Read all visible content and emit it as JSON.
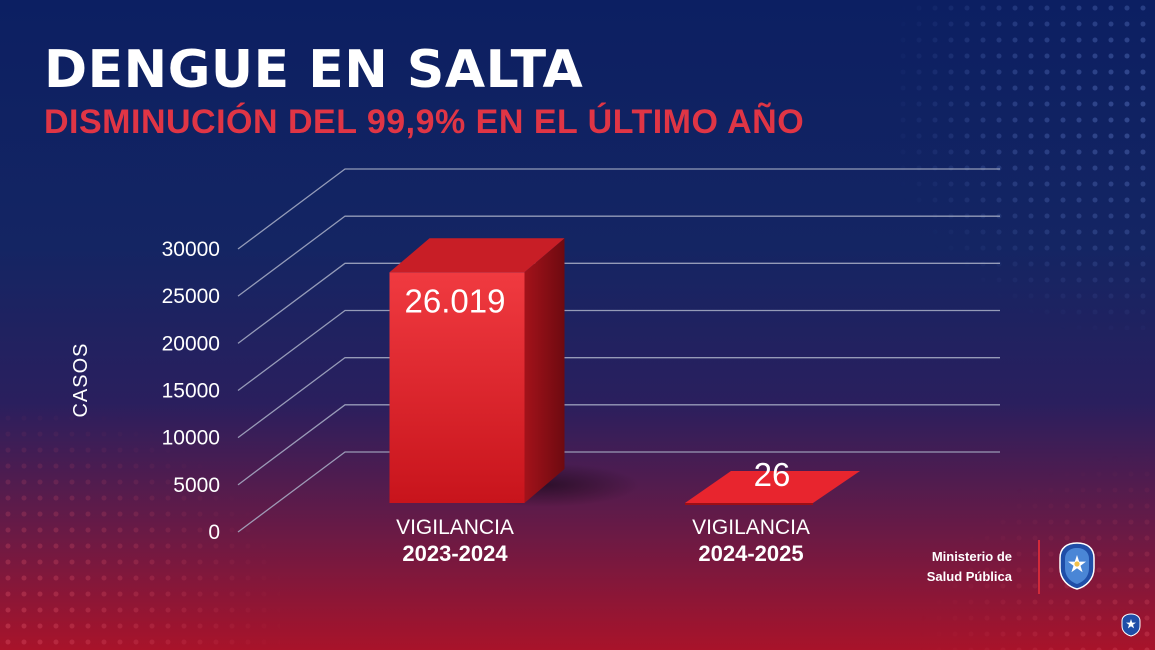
{
  "header": {
    "title": "DENGUE EN SALTA",
    "subtitle": "DISMINUCIÓN DEL 99,9% EN EL ÚLTIMO AÑO"
  },
  "chart_data": {
    "type": "bar",
    "style": "3d",
    "title": "DENGUE EN SALTA",
    "subtitle": "DISMINUCIÓN DEL 99,9% EN EL ÚLTIMO AÑO",
    "xlabel": "",
    "ylabel": "CASOS",
    "ylim": [
      0,
      30000
    ],
    "yticks": [
      0,
      5000,
      10000,
      15000,
      20000,
      25000,
      30000
    ],
    "categories": [
      "VIGILANCIA 2023-2024",
      "VIGILANCIA 2024-2025"
    ],
    "category_lines": [
      [
        "VIGILANCIA",
        "2023-2024"
      ],
      [
        "VIGILANCIA",
        "2024-2025"
      ]
    ],
    "values": [
      26019,
      26
    ],
    "data_labels": [
      "26.019",
      "26"
    ],
    "grid": true,
    "legend": "none",
    "colors": {
      "bar": "#e8252e",
      "bar_side": "#8e0f16",
      "bar_top": "#c81e26",
      "grid": "#aab0c8",
      "text": "#ffffff"
    }
  },
  "brand": {
    "line1": "Ministerio de",
    "line2": "Salud Pública",
    "seal_icon": "salta-province-seal-icon",
    "divider_color": "#d12a3a"
  },
  "theme": {
    "title_color": "#ffffff",
    "subtitle_color": "#e03545",
    "background_top": "#0c1f62",
    "background_bottom": "#a8132a"
  }
}
